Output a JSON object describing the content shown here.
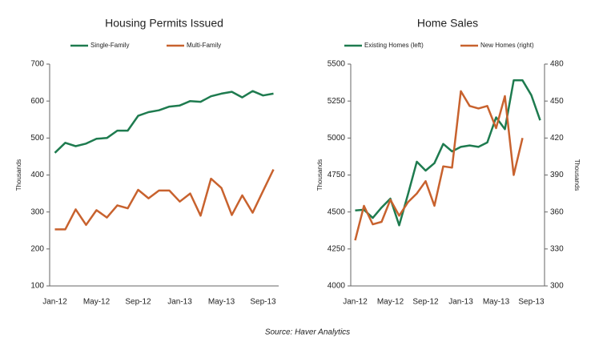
{
  "chart_data": [
    {
      "type": "line",
      "title": "Housing Permits Issued",
      "y_label": "Thousands",
      "categories": [
        "Jan-12",
        null,
        null,
        null,
        "May-12",
        null,
        null,
        null,
        "Sep-12",
        null,
        null,
        null,
        "Jan-13",
        null,
        null,
        null,
        "May-13",
        null,
        null,
        null,
        "Sep-13",
        null
      ],
      "ylim": [
        100,
        700
      ],
      "yticks": [
        100,
        200,
        300,
        400,
        500,
        600,
        700
      ],
      "series": [
        {
          "name": "Single-Family",
          "color": "#1e7b4f",
          "values": [
            460,
            487,
            478,
            485,
            498,
            500,
            520,
            520,
            560,
            570,
            575,
            585,
            588,
            600,
            598,
            613,
            620,
            625,
            610,
            627,
            615,
            620
          ]
        },
        {
          "name": "Multi-Family",
          "color": "#c8622e",
          "values": [
            253,
            253,
            307,
            265,
            305,
            285,
            318,
            310,
            360,
            337,
            358,
            358,
            328,
            350,
            290,
            390,
            365,
            292,
            345,
            298,
            357,
            415
          ]
        }
      ]
    },
    {
      "type": "line",
      "title": "Home Sales",
      "y_label": "Thousands",
      "y2_label": "Thousands",
      "categories": [
        "Jan-12",
        null,
        null,
        null,
        "May-12",
        null,
        null,
        null,
        "Sep-12",
        null,
        null,
        null,
        "Jan-13",
        null,
        null,
        null,
        "May-13",
        null,
        null,
        null,
        "Sep-13",
        null
      ],
      "ylim": [
        4000,
        5500
      ],
      "yticks": [
        4000,
        4250,
        4500,
        4750,
        5000,
        5250,
        5500
      ],
      "y2lim": [
        300,
        480
      ],
      "y2ticks": [
        300,
        330,
        360,
        390,
        420,
        450,
        480
      ],
      "series": [
        {
          "name": "Existing Homes (left)",
          "color": "#1e7b4f",
          "values": [
            4510,
            4515,
            4460,
            4530,
            4590,
            4410,
            4620,
            4840,
            4780,
            4830,
            4960,
            4910,
            4940,
            4950,
            4940,
            4970,
            5140,
            5060,
            5390,
            5390,
            5290,
            5120
          ]
        },
        {
          "name": "New Homes (right)",
          "color": "#c8622e",
          "axis": "y2",
          "values": [
            337,
            365,
            350,
            352,
            370,
            357,
            368,
            375,
            385,
            365,
            397,
            396,
            458,
            446,
            444,
            446,
            428,
            454,
            390,
            420,
            null,
            null
          ]
        }
      ]
    }
  ],
  "source": "Source: Haver Analytics"
}
